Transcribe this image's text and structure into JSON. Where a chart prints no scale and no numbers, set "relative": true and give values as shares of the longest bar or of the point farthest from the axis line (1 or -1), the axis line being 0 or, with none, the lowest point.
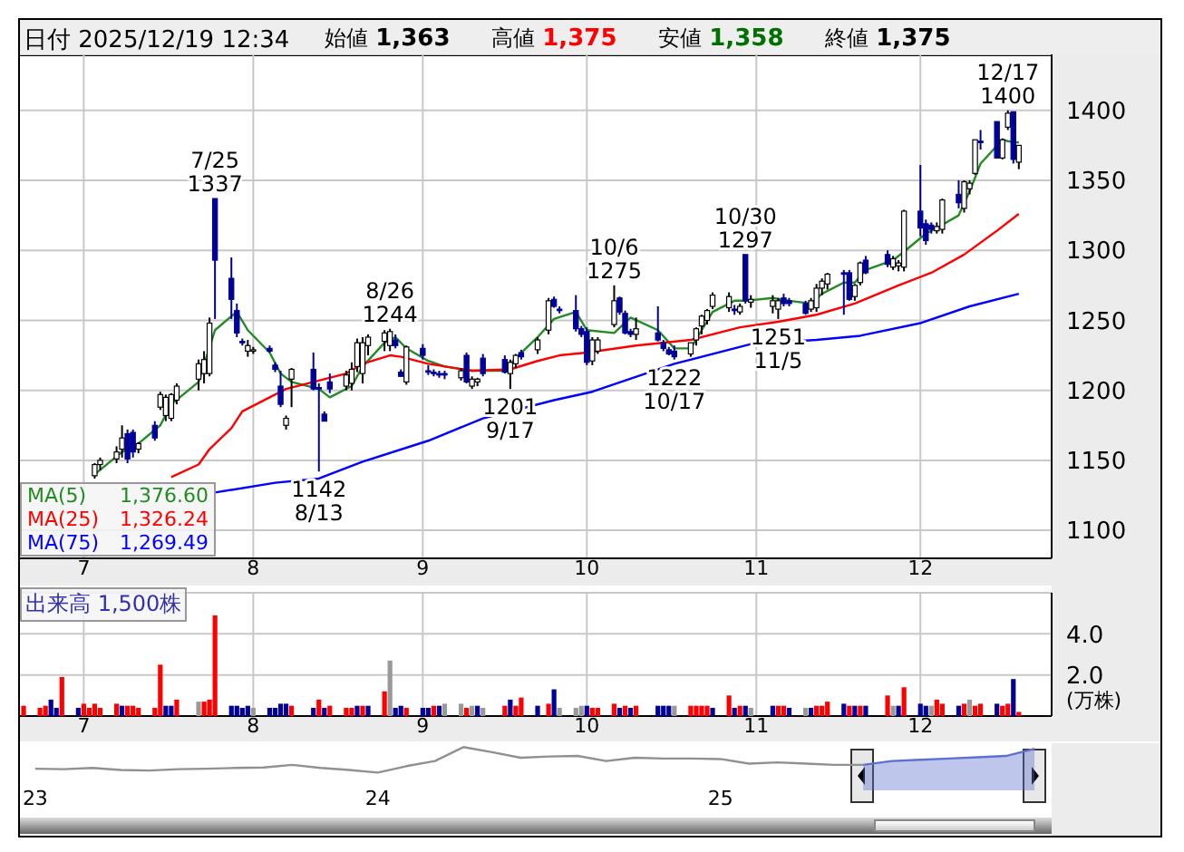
{
  "chart_data": [
    {
      "type": "other",
      "title": "日付 2025/12/19 12:34",
      "categories": [
        "始値",
        "高値",
        "安値",
        "終値"
      ],
      "value_labels": [
        "1,363",
        "1,375",
        "1,358",
        "1,375"
      ],
      "colors": [
        "#000000",
        "#ff0000",
        "#007000",
        "#000000"
      ]
    },
    {
      "type": "candlestick",
      "x": [
        "2025-07-03",
        "2025-07-04",
        "2025-07-07",
        "2025-07-08",
        "2025-07-09",
        "2025-07-10",
        "2025-07-11",
        "2025-07-14",
        "2025-07-15",
        "2025-07-16",
        "2025-07-17",
        "2025-07-18",
        "2025-07-22",
        "2025-07-23",
        "2025-07-24",
        "2025-07-25",
        "2025-07-28",
        "2025-07-29",
        "2025-07-30",
        "2025-07-31",
        "2025-08-01",
        "2025-08-04",
        "2025-08-05",
        "2025-08-06",
        "2025-08-07",
        "2025-08-08",
        "2025-08-12",
        "2025-08-13",
        "2025-08-14",
        "2025-08-15",
        "2025-08-18",
        "2025-08-19",
        "2025-08-20",
        "2025-08-21",
        "2025-08-22",
        "2025-08-25",
        "2025-08-26",
        "2025-08-27",
        "2025-08-28",
        "2025-08-29",
        "2025-09-01",
        "2025-09-02",
        "2025-09-03",
        "2025-09-04",
        "2025-09-05",
        "2025-09-08",
        "2025-09-09",
        "2025-09-10",
        "2025-09-11",
        "2025-09-12",
        "2025-09-16",
        "2025-09-17",
        "2025-09-18",
        "2025-09-19",
        "2025-09-22",
        "2025-09-24",
        "2025-09-25",
        "2025-09-26",
        "2025-09-29",
        "2025-09-30",
        "2025-10-01",
        "2025-10-02",
        "2025-10-03",
        "2025-10-06",
        "2025-10-07",
        "2025-10-08",
        "2025-10-09",
        "2025-10-10",
        "2025-10-14",
        "2025-10-15",
        "2025-10-16",
        "2025-10-17",
        "2025-10-20",
        "2025-10-21",
        "2025-10-22",
        "2025-10-23",
        "2025-10-24",
        "2025-10-27",
        "2025-10-28",
        "2025-10-29",
        "2025-10-30",
        "2025-10-31",
        "2025-11-04",
        "2025-11-05",
        "2025-11-06",
        "2025-11-07",
        "2025-11-10",
        "2025-11-11",
        "2025-11-12",
        "2025-11-13",
        "2025-11-14",
        "2025-11-17",
        "2025-11-18",
        "2025-11-19",
        "2025-11-20",
        "2025-11-21",
        "2025-11-25",
        "2025-11-26",
        "2025-11-27",
        "2025-11-28",
        "2025-12-01",
        "2025-12-02",
        "2025-12-03",
        "2025-12-04",
        "2025-12-05",
        "2025-12-08",
        "2025-12-09",
        "2025-12-10",
        "2025-12-11",
        "2025-12-12",
        "2025-12-15",
        "2025-12-16",
        "2025-12-17",
        "2025-12-18",
        "2025-12-19"
      ],
      "ohlc": [
        [
          1139,
          1148,
          1137,
          1147
        ],
        [
          1147,
          1152,
          1143,
          1150
        ],
        [
          1151,
          1160,
          1148,
          1156
        ],
        [
          1158,
          1175,
          1152,
          1166
        ],
        [
          1169,
          1172,
          1148,
          1151
        ],
        [
          1170,
          1172,
          1152,
          1156
        ],
        [
          1158,
          1163,
          1155,
          1162
        ],
        [
          1175,
          1178,
          1164,
          1166
        ],
        [
          1188,
          1199,
          1186,
          1197
        ],
        [
          1182,
          1197,
          1178,
          1195
        ],
        [
          1180,
          1198,
          1178,
          1197
        ],
        [
          1193,
          1205,
          1190,
          1203
        ],
        [
          1208,
          1222,
          1200,
          1219
        ],
        [
          1212,
          1228,
          1205,
          1222
        ],
        [
          1212,
          1252,
          1210,
          1248
        ],
        [
          1337,
          1337,
          1251,
          1293
        ],
        [
          1280,
          1295,
          1251,
          1265
        ],
        [
          1257,
          1262,
          1238,
          1241
        ],
        [
          1235,
          1237,
          1232,
          1234
        ],
        [
          1228,
          1236,
          1224,
          1232
        ],
        [
          1229,
          1231,
          1226,
          1229
        ],
        [
          1230,
          1232,
          1227,
          1228
        ],
        [
          1218,
          1220,
          1213,
          1215
        ],
        [
          1203,
          1214,
          1188,
          1190
        ],
        [
          1175,
          1182,
          1172,
          1180
        ],
        [
          1208,
          1216,
          1188,
          1215
        ],
        [
          1215,
          1227,
          1200,
          1201
        ],
        [
          1202,
          1205,
          1142,
          1201
        ],
        [
          1183,
          1185,
          1178,
          1178
        ],
        [
          1206,
          1212,
          1198,
          1201
        ],
        [
          1203,
          1214,
          1200,
          1211
        ],
        [
          1205,
          1220,
          1200,
          1215
        ],
        [
          1217,
          1237,
          1213,
          1234
        ],
        [
          1212,
          1238,
          1205,
          1234
        ],
        [
          1232,
          1240,
          1225,
          1238
        ],
        [
          1235,
          1243,
          1228,
          1241
        ],
        [
          1232,
          1244,
          1228,
          1242
        ],
        [
          1236,
          1240,
          1230,
          1232
        ],
        [
          1213,
          1215,
          1210,
          1210
        ],
        [
          1206,
          1232,
          1204,
          1231
        ],
        [
          1230,
          1233,
          1222,
          1225
        ],
        [
          1214,
          1218,
          1211,
          1213
        ],
        [
          1213,
          1215,
          1210,
          1212
        ],
        [
          1212,
          1214,
          1209,
          1211
        ],
        [
          1212,
          1214,
          1208,
          1211
        ],
        [
          1209,
          1216,
          1207,
          1214
        ],
        [
          1225,
          1227,
          1205,
          1206
        ],
        [
          1203,
          1210,
          1201,
          1208
        ],
        [
          1206,
          1209,
          1203,
          1208
        ],
        [
          1223,
          1226,
          1210,
          1212
        ],
        [
          1222,
          1225,
          1212,
          1213
        ],
        [
          1212,
          1222,
          1201,
          1220
        ],
        [
          1219,
          1226,
          1216,
          1225
        ],
        [
          1227,
          1229,
          1222,
          1224
        ],
        [
          1229,
          1238,
          1226,
          1236
        ],
        [
          1243,
          1266,
          1240,
          1264
        ],
        [
          1265,
          1267,
          1259,
          1260
        ],
        [
          1258,
          1260,
          1255,
          1257
        ],
        [
          1257,
          1268,
          1242,
          1244
        ],
        [
          1244,
          1246,
          1238,
          1240
        ],
        [
          1242,
          1245,
          1218,
          1220
        ],
        [
          1221,
          1238,
          1218,
          1236
        ],
        [
          1228,
          1238,
          1226,
          1236
        ],
        [
          1247,
          1275,
          1245,
          1264
        ],
        [
          1266,
          1267,
          1254,
          1256
        ],
        [
          1255,
          1257,
          1240,
          1241
        ],
        [
          1242,
          1244,
          1238,
          1240
        ],
        [
          1240,
          1252,
          1236,
          1244
        ],
        [
          1241,
          1260,
          1235,
          1236
        ],
        [
          1234,
          1236,
          1228,
          1230
        ],
        [
          1229,
          1231,
          1225,
          1226
        ],
        [
          1228,
          1232,
          1222,
          1224
        ],
        [
          1226,
          1234,
          1224,
          1234
        ],
        [
          1236,
          1245,
          1232,
          1244
        ],
        [
          1246,
          1254,
          1240,
          1253
        ],
        [
          1250,
          1258,
          1247,
          1257
        ],
        [
          1260,
          1270,
          1258,
          1268
        ],
        [
          1259,
          1270,
          1256,
          1267
        ],
        [
          1258,
          1261,
          1254,
          1257
        ],
        [
          1256,
          1262,
          1254,
          1260
        ],
        [
          1297,
          1297,
          1262,
          1264
        ],
        [
          1263,
          1268,
          1259,
          1265
        ],
        [
          1260,
          1268,
          1255,
          1264
        ],
        [
          1258,
          1266,
          1251,
          1264
        ],
        [
          1266,
          1269,
          1260,
          1262
        ],
        [
          1264,
          1266,
          1260,
          1262
        ],
        [
          1262,
          1264,
          1254,
          1255
        ],
        [
          1258,
          1266,
          1256,
          1264
        ],
        [
          1259,
          1276,
          1256,
          1273
        ],
        [
          1273,
          1280,
          1268,
          1278
        ],
        [
          1276,
          1284,
          1272,
          1283
        ],
        [
          1284,
          1286,
          1254,
          1283
        ],
        [
          1284,
          1286,
          1264,
          1265
        ],
        [
          1267,
          1276,
          1264,
          1275
        ],
        [
          1277,
          1292,
          1275,
          1291
        ],
        [
          1293,
          1296,
          1283,
          1284
        ],
        [
          1297,
          1300,
          1288,
          1290
        ],
        [
          1288,
          1296,
          1286,
          1294
        ],
        [
          1289,
          1293,
          1285,
          1291
        ],
        [
          1288,
          1329,
          1285,
          1328
        ],
        [
          1328,
          1361,
          1310,
          1316
        ],
        [
          1319,
          1322,
          1304,
          1307
        ],
        [
          1318,
          1320,
          1312,
          1315
        ],
        [
          1314,
          1320,
          1312,
          1317
        ],
        [
          1315,
          1337,
          1312,
          1336
        ],
        [
          1340,
          1350,
          1330,
          1334
        ],
        [
          1330,
          1350,
          1327,
          1349
        ],
        [
          1344,
          1350,
          1340,
          1348
        ],
        [
          1355,
          1379,
          1354,
          1379
        ],
        [
          1378,
          1386,
          1372,
          1377
        ],
        [
          1392,
          1392,
          1366,
          1366
        ],
        [
          1366,
          1380,
          1365,
          1379
        ],
        [
          1388,
          1400,
          1386,
          1398
        ],
        [
          1399,
          1399,
          1362,
          1365
        ],
        [
          1363,
          1375,
          1358,
          1375
        ]
      ],
      "colors": [
        "#ffffff",
        "#ffffff",
        "#ffffff",
        "#ffffff",
        "#000099",
        "#000099",
        "#ffffff",
        "#000099",
        "#ffffff",
        "#ffffff",
        "#ffffff",
        "#ffffff",
        "#ffffff",
        "#ffffff",
        "#ffffff",
        "#000099",
        "#000099",
        "#000099",
        "#000099",
        "#ffffff",
        "#ffffff",
        "#000099",
        "#000099",
        "#000099",
        "#ffffff",
        "#ffffff",
        "#000099",
        "#000099",
        "#000099",
        "#000099",
        "#ffffff",
        "#ffffff",
        "#ffffff",
        "#ffffff",
        "#ffffff",
        "#ffffff",
        "#ffffff",
        "#000099",
        "#000099",
        "#ffffff",
        "#000099",
        "#000099",
        "#000099",
        "#000099",
        "#000099",
        "#ffffff",
        "#000099",
        "#ffffff",
        "#ffffff",
        "#000099",
        "#000099",
        "#ffffff",
        "#ffffff",
        "#000099",
        "#ffffff",
        "#ffffff",
        "#000099",
        "#000099",
        "#000099",
        "#000099",
        "#000099",
        "#ffffff",
        "#ffffff",
        "#ffffff",
        "#000099",
        "#000099",
        "#000099",
        "#ffffff",
        "#000099",
        "#000099",
        "#000099",
        "#000099",
        "#ffffff",
        "#ffffff",
        "#ffffff",
        "#ffffff",
        "#ffffff",
        "#ffffff",
        "#000099",
        "#ffffff",
        "#000099",
        "#ffffff",
        "#ffffff",
        "#ffffff",
        "#000099",
        "#000099",
        "#000099",
        "#ffffff",
        "#ffffff",
        "#ffffff",
        "#ffffff",
        "#000099",
        "#000099",
        "#ffffff",
        "#ffffff",
        "#000099",
        "#000099",
        "#ffffff",
        "#ffffff",
        "#ffffff",
        "#000099",
        "#000099",
        "#000099",
        "#ffffff",
        "#ffffff",
        "#000099",
        "#ffffff",
        "#ffffff",
        "#ffffff",
        "#000099",
        "#000099",
        "#ffffff",
        "#ffffff",
        "#000099",
        "#ffffff"
      ],
      "series": [
        {
          "name": "MA(5) 1,376.60",
          "type": "line",
          "color": "#228b22",
          "x": [
            "2025-07-03",
            "2025-07-08",
            "2025-07-11",
            "2025-07-15",
            "2025-07-17",
            "2025-07-22",
            "2025-07-25",
            "2025-07-28",
            "2025-07-29",
            "2025-07-31",
            "2025-08-04",
            "2025-08-06",
            "2025-08-08",
            "2025-08-13",
            "2025-08-15",
            "2025-08-19",
            "2025-08-21",
            "2025-08-25",
            "2025-08-27",
            "2025-08-29",
            "2025-09-02",
            "2025-09-05",
            "2025-09-10",
            "2025-09-16",
            "2025-09-18",
            "2025-09-22",
            "2025-09-25",
            "2025-09-29",
            "2025-10-01",
            "2025-10-06",
            "2025-10-09",
            "2025-10-14",
            "2025-10-17",
            "2025-10-20",
            "2025-10-22",
            "2025-10-24",
            "2025-10-28",
            "2025-10-30",
            "2025-11-04",
            "2025-11-07",
            "2025-11-11",
            "2025-11-13",
            "2025-11-17",
            "2025-11-19",
            "2025-11-21",
            "2025-11-26",
            "2025-11-28",
            "2025-12-02",
            "2025-12-04",
            "2025-12-08",
            "2025-12-10",
            "2025-12-12",
            "2025-12-16",
            "2025-12-17",
            "2025-12-19"
          ],
          "values": [
            1140,
            1156,
            1162,
            1175,
            1190,
            1206,
            1243,
            1253,
            1256,
            1243,
            1227,
            1212,
            1206,
            1201,
            1195,
            1203,
            1217,
            1234,
            1238,
            1230,
            1221,
            1217,
            1214,
            1214,
            1223,
            1238,
            1251,
            1256,
            1243,
            1241,
            1252,
            1243,
            1230,
            1230,
            1243,
            1256,
            1264,
            1264,
            1266,
            1264,
            1262,
            1269,
            1277,
            1277,
            1286,
            1293,
            1299,
            1312,
            1316,
            1325,
            1342,
            1362,
            1379,
            1378,
            1377
          ]
        },
        {
          "name": "MA(25) 1,326.24",
          "type": "line",
          "color": "#ff0000",
          "x": [
            "2025-07-17",
            "2025-07-22",
            "2025-07-24",
            "2025-07-28",
            "2025-07-30",
            "2025-08-04",
            "2025-08-07",
            "2025-08-13",
            "2025-08-18",
            "2025-08-21",
            "2025-08-26",
            "2025-08-28",
            "2025-09-02",
            "2025-09-10",
            "2025-09-17",
            "2025-09-22",
            "2025-09-26",
            "2025-10-01",
            "2025-10-10",
            "2025-10-20",
            "2025-10-29",
            "2025-11-05",
            "2025-11-12",
            "2025-11-19",
            "2025-11-27",
            "2025-12-03",
            "2025-12-09",
            "2025-12-15",
            "2025-12-19"
          ],
          "values": [
            1138,
            1147,
            1158,
            1173,
            1185,
            1195,
            1201,
            1207,
            1212,
            1219,
            1225,
            1224,
            1219,
            1214,
            1215,
            1221,
            1225,
            1227,
            1232,
            1236,
            1245,
            1249,
            1254,
            1262,
            1275,
            1284,
            1297,
            1314,
            1326
          ]
        },
        {
          "name": "MA(75) 1,269.49",
          "type": "line",
          "color": "#0000ff",
          "x": [
            "2025-07-25",
            "2025-08-05",
            "2025-08-13",
            "2025-08-21",
            "2025-09-02",
            "2025-09-12",
            "2025-09-25",
            "2025-10-02",
            "2025-10-17",
            "2025-10-31",
            "2025-11-12",
            "2025-11-20",
            "2025-12-01",
            "2025-12-10",
            "2025-12-19"
          ],
          "values": [
            1127,
            1134,
            1137,
            1149,
            1164,
            1180,
            1193,
            1199,
            1219,
            1233,
            1236,
            1239,
            1248,
            1260,
            1269
          ]
        }
      ],
      "xlim": [
        "2025-06-19",
        "2025-12-25"
      ],
      "xticks": [
        {
          "value": "2025-07-01",
          "label": "7"
        },
        {
          "value": "2025-08-01",
          "label": "8"
        },
        {
          "value": "2025-09-01",
          "label": "9"
        },
        {
          "value": "2025-10-01",
          "label": "10"
        },
        {
          "value": "2025-11-01",
          "label": "11"
        },
        {
          "value": "2025-12-01",
          "label": "12"
        }
      ],
      "ylim": [
        1080,
        1440
      ],
      "yticks": [
        1100,
        1150,
        1200,
        1250,
        1300,
        1350,
        1400
      ],
      "grid": true,
      "legend": "bottom left",
      "annotations": [
        {
          "text": "7/25\n1337",
          "x": "2025-07-25",
          "y": 1337
        },
        {
          "text": "1142\n8/13",
          "x": "2025-08-13",
          "y": 1142
        },
        {
          "text": "8/26\n1244",
          "x": "2025-08-26",
          "y": 1244
        },
        {
          "text": "1201\n9/17",
          "x": "2025-09-17",
          "y": 1201
        },
        {
          "text": "10/6\n1275",
          "x": "2025-10-06",
          "y": 1275
        },
        {
          "text": "1222\n10/17",
          "x": "2025-10-17",
          "y": 1222
        },
        {
          "text": "10/30\n1297",
          "x": "2025-10-30",
          "y": 1297
        },
        {
          "text": "1251\n11/5",
          "x": "2025-11-05",
          "y": 1251
        },
        {
          "text": "12/17\n1400",
          "x": "2025-12-17",
          "y": 1400
        }
      ]
    },
    {
      "type": "bar",
      "title": "出来高 1,500株",
      "ylabel": "(万株)",
      "x": [
        "2025-06-20",
        "2025-06-23",
        "2025-06-24",
        "2025-06-25",
        "2025-06-26",
        "2025-06-27",
        "2025-06-30",
        "2025-07-01",
        "2025-07-02",
        "2025-07-03",
        "2025-07-04",
        "2025-07-07",
        "2025-07-08",
        "2025-07-09",
        "2025-07-10",
        "2025-07-11",
        "2025-07-14",
        "2025-07-15",
        "2025-07-16",
        "2025-07-17",
        "2025-07-18",
        "2025-07-22",
        "2025-07-23",
        "2025-07-24",
        "2025-07-25",
        "2025-07-28",
        "2025-07-29",
        "2025-07-30",
        "2025-07-31",
        "2025-08-01",
        "2025-08-04",
        "2025-08-05",
        "2025-08-06",
        "2025-08-07",
        "2025-08-08",
        "2025-08-12",
        "2025-08-13",
        "2025-08-14",
        "2025-08-15",
        "2025-08-18",
        "2025-08-19",
        "2025-08-20",
        "2025-08-21",
        "2025-08-22",
        "2025-08-25",
        "2025-08-26",
        "2025-08-27",
        "2025-08-28",
        "2025-08-29",
        "2025-09-01",
        "2025-09-02",
        "2025-09-03",
        "2025-09-04",
        "2025-09-05",
        "2025-09-08",
        "2025-09-09",
        "2025-09-10",
        "2025-09-11",
        "2025-09-12",
        "2025-09-16",
        "2025-09-17",
        "2025-09-18",
        "2025-09-19",
        "2025-09-22",
        "2025-09-24",
        "2025-09-25",
        "2025-09-26",
        "2025-09-29",
        "2025-09-30",
        "2025-10-01",
        "2025-10-02",
        "2025-10-03",
        "2025-10-06",
        "2025-10-07",
        "2025-10-08",
        "2025-10-09",
        "2025-10-10",
        "2025-10-14",
        "2025-10-15",
        "2025-10-16",
        "2025-10-17",
        "2025-10-20",
        "2025-10-21",
        "2025-10-22",
        "2025-10-23",
        "2025-10-24",
        "2025-10-27",
        "2025-10-28",
        "2025-10-29",
        "2025-10-30",
        "2025-10-31",
        "2025-11-04",
        "2025-11-05",
        "2025-11-06",
        "2025-11-07",
        "2025-11-10",
        "2025-11-11",
        "2025-11-12",
        "2025-11-13",
        "2025-11-14",
        "2025-11-17",
        "2025-11-18",
        "2025-11-19",
        "2025-11-20",
        "2025-11-21",
        "2025-11-25",
        "2025-11-26",
        "2025-11-27",
        "2025-11-28",
        "2025-12-01",
        "2025-12-02",
        "2025-12-03",
        "2025-12-04",
        "2025-12-05",
        "2025-12-08",
        "2025-12-09",
        "2025-12-10",
        "2025-12-11",
        "2025-12-12",
        "2025-12-15",
        "2025-12-16",
        "2025-12-17",
        "2025-12-18",
        "2025-12-19"
      ],
      "values": [
        0.5,
        0.4,
        0.5,
        0.8,
        0.4,
        1.9,
        0.4,
        0.6,
        0.4,
        0.6,
        0.4,
        0.6,
        0.5,
        0.5,
        0.5,
        0.4,
        0.4,
        2.5,
        0.5,
        0.5,
        0.8,
        0.7,
        0.7,
        0.8,
        4.9,
        0.5,
        0.5,
        0.4,
        0.5,
        0.4,
        0.4,
        0.4,
        0.6,
        0.6,
        0.5,
        0.4,
        0.8,
        0.4,
        0.5,
        0.4,
        0.4,
        0.5,
        0.5,
        0.5,
        1.2,
        2.7,
        0.4,
        0.5,
        0.4,
        0.4,
        0.4,
        0.5,
        0.5,
        0.6,
        0.6,
        0.4,
        0.5,
        0.5,
        0.4,
        0.5,
        0.8,
        0.5,
        0.9,
        0.5,
        0.6,
        1.3,
        0.4,
        0.4,
        0.5,
        0.5,
        0.4,
        0.4,
        0.6,
        0.4,
        0.5,
        0.4,
        0.5,
        0.5,
        0.5,
        0.5,
        0.5,
        0.5,
        0.5,
        0.5,
        0.5,
        0.4,
        1.0,
        0.4,
        0.5,
        0.5,
        0.4,
        0.5,
        0.5,
        0.5,
        0.4,
        0.4,
        0.4,
        0.5,
        0.5,
        0.7,
        0.6,
        0.5,
        0.5,
        0.5,
        0.5,
        1.0,
        0.5,
        0.5,
        1.4,
        0.6,
        0.5,
        0.5,
        0.8,
        0.6,
        0.5,
        0.6,
        0.8,
        0.5,
        0.6,
        0.6,
        0.5,
        0.6,
        1.8,
        0.2
      ],
      "colors": [
        "#ff0000",
        "#ff0000",
        "#ff0000",
        "#000099",
        "#000099",
        "#ff0000",
        "#000099",
        "#ff0000",
        "#ff0000",
        "#ff0000",
        "#ff0000",
        "#ff0000",
        "#000099",
        "#ff0000",
        "#ff0000",
        "#ff0000",
        "#ff0000",
        "#ff0000",
        "#000099",
        "#000099",
        "#ff0000",
        "#999999",
        "#ff0000",
        "#ff0000",
        "#ff0000",
        "#000099",
        "#000099",
        "#000099",
        "#000099",
        "#999999",
        "#000099",
        "#000099",
        "#000099",
        "#000099",
        "#ff0000",
        "#000099",
        "#ff0000",
        "#000099",
        "#ff0000",
        "#ff0000",
        "#ff0000",
        "#000099",
        "#ff0000",
        "#000099",
        "#ff0000",
        "#999999",
        "#000099",
        "#000099",
        "#ff0000",
        "#000099",
        "#000099",
        "#ff0000",
        "#000099",
        "#999999",
        "#999999",
        "#ff0000",
        "#999999",
        "#000099",
        "#999999",
        "#ff0000",
        "#000099",
        "#ff0000",
        "#ff0000",
        "#000099",
        "#ff0000",
        "#000099",
        "#999999",
        "#999999",
        "#999999",
        "#000099",
        "#ff0000",
        "#ff0000",
        "#ff0000",
        "#000099",
        "#ff0000",
        "#000099",
        "#ff0000",
        "#000099",
        "#000099",
        "#000099",
        "#999999",
        "#ff0000",
        "#ff0000",
        "#ff0000",
        "#ff0000",
        "#000099",
        "#ff0000",
        "#000099",
        "#ff0000",
        "#000099",
        "#999999",
        "#000099",
        "#ff0000",
        "#ff0000",
        "#000099",
        "#999999",
        "#000099",
        "#ff0000",
        "#ff0000",
        "#ff0000",
        "#000099",
        "#ff0000",
        "#000099",
        "#ff0000",
        "#000099",
        "#ff0000",
        "#999999",
        "#000099",
        "#ff0000",
        "#000099",
        "#000099",
        "#999999",
        "#ff0000",
        "#ff0000",
        "#000099",
        "#ff0000",
        "#999999",
        "#ff0000",
        "#ff0000",
        "#000099",
        "#ff0000",
        "#ff0000",
        "#000099",
        "#ff0000"
      ],
      "xlim": [
        "2025-06-19",
        "2025-12-25"
      ],
      "xticks": [
        {
          "value": "2025-07-01",
          "label": "7"
        },
        {
          "value": "2025-08-01",
          "label": "8"
        },
        {
          "value": "2025-09-01",
          "label": "9"
        },
        {
          "value": "2025-10-01",
          "label": "10"
        },
        {
          "value": "2025-11-01",
          "label": "11"
        },
        {
          "value": "2025-12-01",
          "label": "12"
        }
      ],
      "ylim": [
        0,
        6
      ],
      "yticks": [
        {
          "value": 2,
          "label": "2.0"
        },
        {
          "value": 4,
          "label": "4.0"
        }
      ],
      "grid": true
    },
    {
      "type": "line",
      "relative": true,
      "tick_labels": "x",
      "categories": [
        "23",
        null,
        null,
        null,
        null,
        null,
        null,
        null,
        null,
        null,
        null,
        null,
        "24",
        null,
        null,
        null,
        null,
        null,
        null,
        null,
        null,
        null,
        null,
        null,
        "25",
        null,
        null,
        null,
        null,
        null,
        null,
        null,
        null,
        null,
        null,
        null
      ],
      "series": [
        {
          "type": "line",
          "color": "#909090",
          "values": [
            0.15,
            0.13,
            0.18,
            0.1,
            0.08,
            0.13,
            0.15,
            0.18,
            0.2,
            0.3,
            0.18,
            0.1,
            0,
            0.25,
            0.45,
            1,
            0.8,
            0.58,
            0.63,
            0.65,
            0.45,
            0.58,
            0.55,
            0.55,
            0.53,
            0.35,
            0.4,
            0.35,
            0.3,
            0.3,
            null,
            null,
            null,
            null,
            null,
            null
          ]
        },
        {
          "type": "area",
          "color": "#6070d0",
          "values": [
            null,
            null,
            null,
            null,
            null,
            null,
            null,
            null,
            null,
            null,
            null,
            null,
            null,
            null,
            null,
            null,
            null,
            null,
            null,
            null,
            null,
            null,
            null,
            null,
            null,
            null,
            null,
            null,
            null,
            0.3,
            0.45,
            0.5,
            0.55,
            0.6,
            0.65,
            0.93
          ]
        }
      ]
    }
  ]
}
